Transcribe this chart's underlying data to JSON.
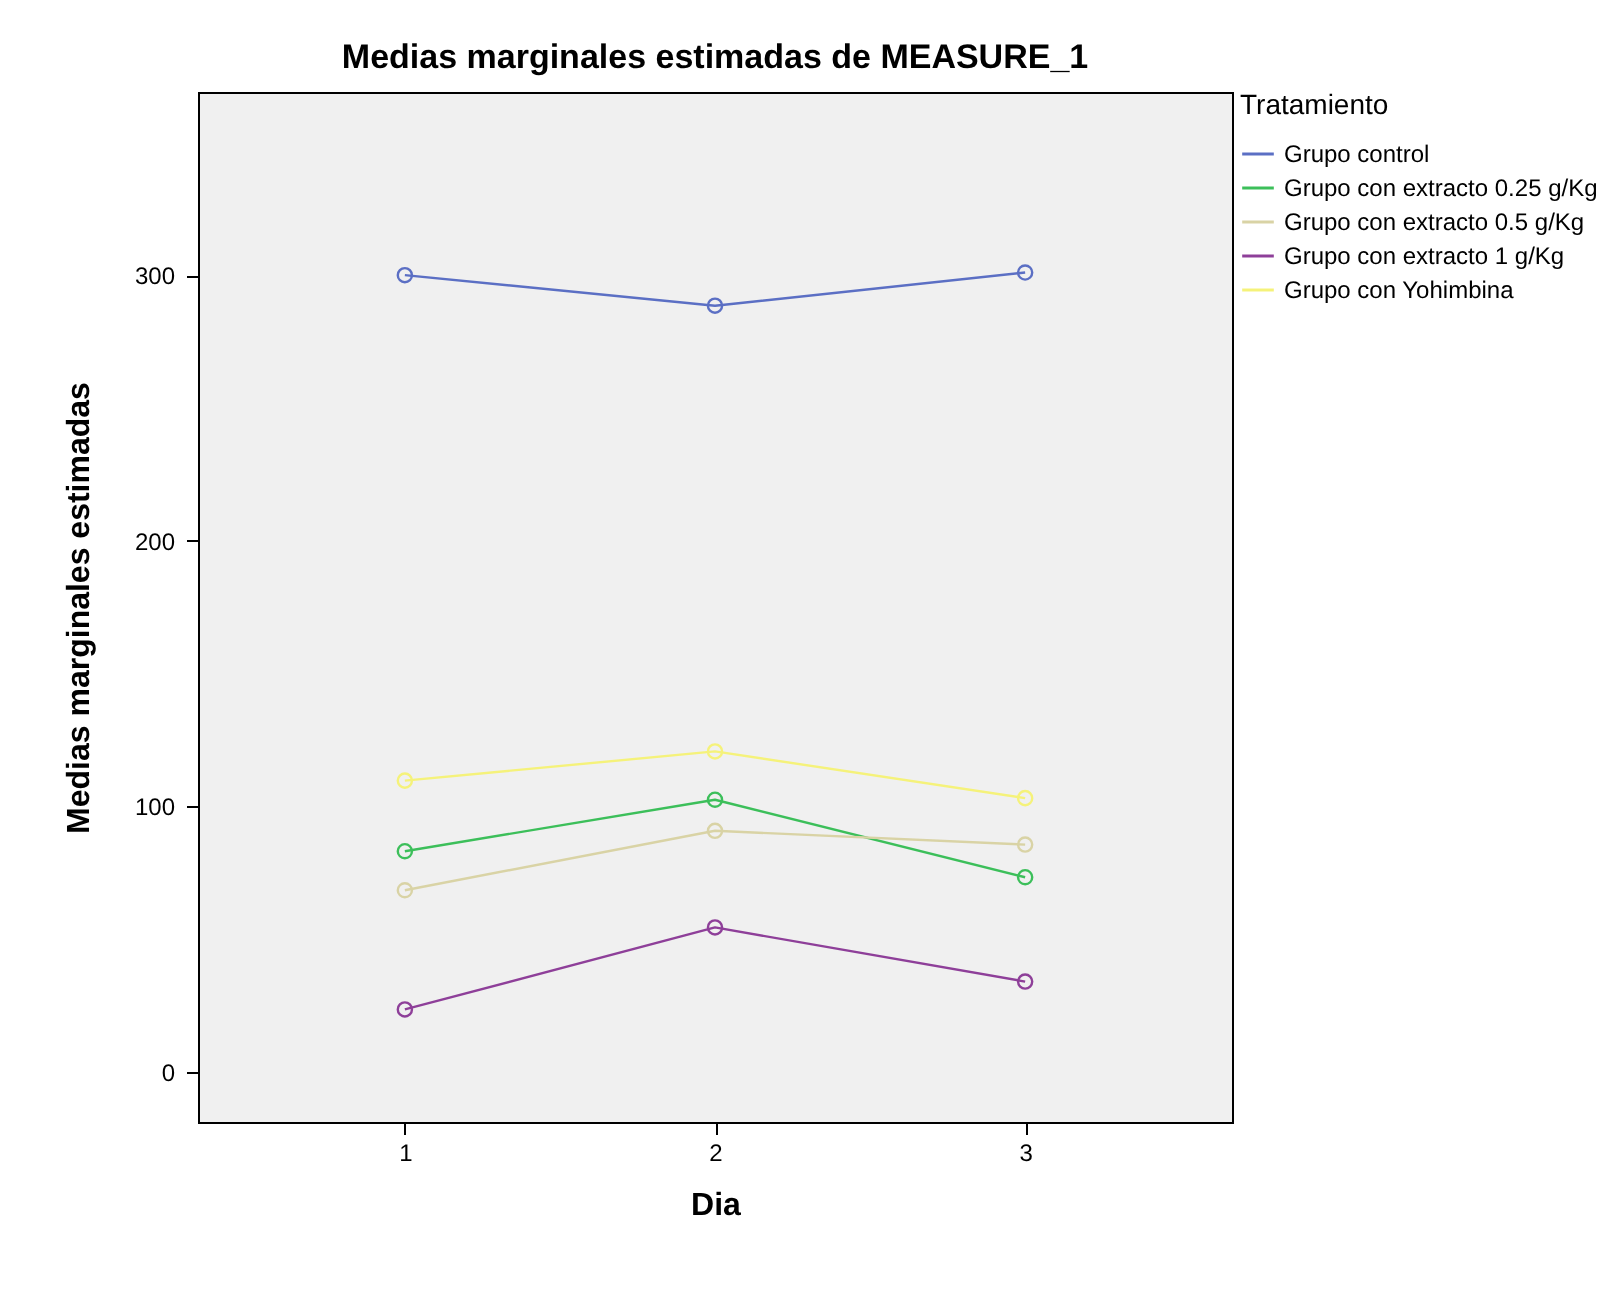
{
  "chart_data": {
    "type": "line",
    "title": "Medias marginales estimadas de MEASURE_1",
    "xlabel": "Dia",
    "ylabel": "Medias marginales estimadas",
    "legend_title": "Tratamiento",
    "categories": [
      "1",
      "2",
      "3"
    ],
    "series": [
      {
        "name": "Grupo control",
        "color": "#5b6fc4",
        "values": [
          300,
          288.5,
          301
        ]
      },
      {
        "name": "Grupo con extracto 0.25 g/Kg",
        "color": "#3cbf5a",
        "values": [
          83,
          102.4,
          73.2
        ]
      },
      {
        "name": "Grupo con extracto 0.5 g/Kg",
        "color": "#d9d3a5",
        "values": [
          68.3,
          90.7,
          85.5
        ]
      },
      {
        "name": "Grupo con extracto 1 g/Kg",
        "color": "#8e3f99",
        "values": [
          23.4,
          54.3,
          33.9
        ]
      },
      {
        "name": "Grupo con Yohimbina",
        "color": "#f5f27a",
        "values": [
          109.6,
          120.6,
          103
        ]
      }
    ],
    "ylim": [
      -19,
      369
    ],
    "yticks": [
      0,
      100,
      200,
      300
    ],
    "marker": "circle",
    "legend": "top right"
  }
}
